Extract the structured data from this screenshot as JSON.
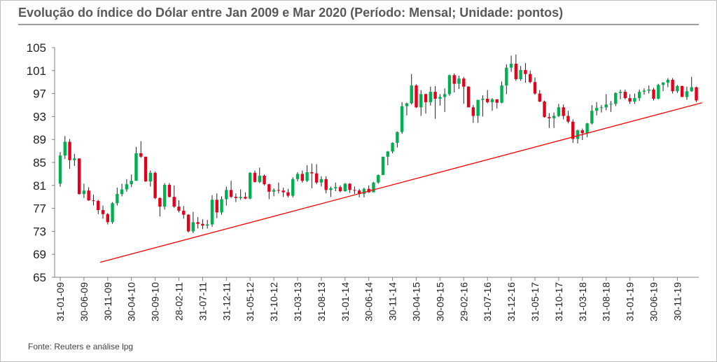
{
  "chart_data": {
    "type": "candlestick",
    "title": "Evolução do índice do Dólar entre Jan 2009 e Mar 2020 (Período: Mensal; Unidade: pontos)",
    "source": "Fonte: Reuters e análise lpg",
    "up_color": "#00b050",
    "down_color": "#e3001b",
    "categories": [
      "31-01-09",
      null,
      null,
      null,
      null,
      "30-06-09",
      null,
      null,
      null,
      null,
      "30-11-09",
      null,
      null,
      null,
      null,
      "30-04-10",
      null,
      null,
      null,
      null,
      "30-09-10",
      null,
      null,
      null,
      null,
      "28-02-11",
      null,
      null,
      null,
      null,
      "31-07-11",
      null,
      null,
      null,
      null,
      "31-12-11",
      null,
      null,
      null,
      null,
      "31-05-12",
      null,
      null,
      null,
      null,
      "31-10-12",
      null,
      null,
      null,
      null,
      "31-03-13",
      null,
      null,
      null,
      null,
      "31-08-13",
      null,
      null,
      null,
      null,
      "31-01-14",
      null,
      null,
      null,
      null,
      "30-06-14",
      null,
      null,
      null,
      null,
      "30-11-14",
      null,
      null,
      null,
      null,
      "30-04-15",
      null,
      null,
      null,
      null,
      "30-09-15",
      null,
      null,
      null,
      null,
      "29-02-16",
      null,
      null,
      null,
      null,
      "31-07-16",
      null,
      null,
      null,
      null,
      "31-12-16",
      null,
      null,
      null,
      null,
      "31-05-17",
      null,
      null,
      null,
      null,
      "31-10-17",
      null,
      null,
      null,
      null,
      "31-03-18",
      null,
      null,
      null,
      null,
      "31-08-18",
      null,
      null,
      null,
      null,
      "31-01-19",
      null,
      null,
      null,
      null,
      "30-06-19",
      null,
      null,
      null,
      null,
      "30-11-19",
      null,
      null,
      null,
      null
    ],
    "open": [
      81.3,
      86.2,
      88.6,
      85.4,
      85.7,
      79.5,
      80.1,
      78.4,
      78.3,
      76.7,
      76.0,
      74.6,
      77.9,
      79.5,
      80.3,
      81.2,
      81.8,
      86.6,
      86.0,
      81.7,
      83.2,
      78.8,
      77.3,
      81.1,
      79.0,
      77.3,
      76.6,
      75.9,
      73.0,
      74.6,
      74.3,
      74.0,
      74.2,
      78.5,
      76.3,
      78.6,
      80.2,
      79.0,
      78.8,
      79.0,
      78.7,
      83.2,
      81.6,
      82.7,
      81.2,
      79.9,
      80.2,
      80.1,
      79.8,
      79.2,
      82.1,
      83.0,
      81.8,
      83.3,
      83.1,
      81.5,
      82.1,
      80.2,
      80.5,
      80.7,
      80.0,
      81.3,
      80.2,
      80.1,
      79.5,
      80.4,
      79.8,
      81.5,
      82.8,
      86.0,
      86.9,
      88.4,
      90.3,
      94.8,
      95.3,
      98.4,
      94.6,
      96.9,
      95.5,
      97.3,
      96.1,
      96.4,
      96.9,
      100.2,
      98.7,
      99.6,
      98.2,
      94.6,
      93.1,
      95.9,
      96.1,
      95.5,
      96.0,
      95.4,
      98.4,
      101.5,
      102.2,
      99.5,
      101.1,
      100.4,
      99.0,
      97.0,
      95.6,
      92.9,
      92.7,
      93.1,
      94.6,
      93.1,
      92.1,
      89.1,
      90.6,
      90.1,
      91.8,
      94.0,
      94.5,
      94.6,
      95.1,
      95.2,
      97.1,
      97.3,
      96.2,
      95.6,
      96.2,
      97.3,
      97.5,
      97.7,
      96.1,
      98.5,
      98.9,
      99.4,
      97.4,
      98.3,
      96.4,
      97.4,
      98.1
    ],
    "high": [
      86.8,
      89.6,
      89.1,
      86.5,
      85.7,
      81.3,
      80.7,
      79.4,
      78.5,
      77.5,
      76.2,
      78.1,
      80.6,
      81.3,
      82.1,
      82.9,
      87.7,
      88.7,
      86.0,
      83.6,
      83.4,
      78.9,
      81.4,
      81.4,
      81.0,
      78.4,
      77.4,
      76.0,
      76.4,
      75.5,
      75.1,
      75.0,
      79.3,
      79.6,
      79.1,
      80.8,
      81.8,
      79.6,
      80.3,
      79.8,
      83.3,
      83.6,
      84.1,
      82.9,
      81.3,
      80.5,
      81.5,
      80.6,
      80.4,
      82.4,
      83.3,
      83.6,
      84.5,
      84.8,
      84.7,
      82.6,
      82.6,
      80.8,
      81.5,
      81.0,
      81.4,
      81.4,
      80.8,
      80.4,
      80.6,
      81.0,
      81.6,
      82.9,
      86.0,
      87.0,
      88.5,
      90.4,
      95.5,
      95.4,
      100.4,
      98.6,
      97.6,
      97.0,
      98.2,
      98.3,
      96.9,
      97.9,
      100.3,
      100.5,
      100.1,
      99.9,
      98.3,
      95.0,
      95.9,
      96.7,
      97.6,
      96.2,
      96.0,
      99.1,
      102.1,
      103.6,
      103.8,
      101.8,
      102.3,
      101.0,
      99.8,
      97.6,
      95.8,
      93.6,
      93.7,
      95.2,
      95.1,
      94.0,
      92.5,
      90.7,
      90.9,
      91.9,
      95.0,
      95.5,
      95.0,
      96.9,
      95.7,
      97.2,
      97.7,
      97.7,
      96.9,
      97.0,
      97.7,
      97.9,
      98.4,
      98.0,
      98.7,
      99.0,
      99.7,
      99.7,
      98.5,
      98.4,
      98.2,
      99.9,
      98.2
    ],
    "low": [
      80.8,
      85.6,
      83.9,
      84.4,
      79.4,
      78.8,
      78.3,
      77.5,
      76.0,
      75.2,
      74.2,
      74.3,
      77.5,
      79.1,
      79.9,
      80.7,
      81.8,
      85.8,
      81.6,
      80.8,
      78.6,
      75.6,
      76.8,
      78.9,
      77.1,
      76.3,
      75.2,
      72.8,
      72.7,
      73.5,
      73.4,
      73.5,
      73.8,
      75.3,
      75.9,
      77.5,
      78.8,
      78.1,
      78.5,
      78.6,
      78.6,
      81.5,
      81.4,
      81.0,
      78.6,
      79.1,
      79.6,
      79.0,
      78.9,
      78.9,
      81.7,
      81.5,
      81.6,
      80.5,
      81.2,
      80.8,
      79.6,
      79.0,
      80.0,
      79.8,
      79.9,
      79.7,
      79.5,
      78.9,
      78.9,
      79.7,
      79.8,
      81.3,
      82.8,
      84.5,
      86.6,
      87.6,
      90.0,
      93.2,
      95.1,
      94.5,
      93.1,
      93.5,
      94.9,
      92.6,
      94.9,
      93.8,
      96.6,
      97.2,
      97.8,
      95.2,
      94.6,
      91.9,
      91.9,
      93.0,
      95.3,
      94.0,
      94.4,
      95.3,
      96.9,
      100.8,
      99.2,
      99.2,
      98.9,
      98.8,
      96.8,
      95.5,
      92.8,
      91.0,
      91.0,
      92.9,
      92.5,
      91.8,
      88.4,
      88.3,
      88.9,
      89.4,
      91.6,
      93.2,
      93.7,
      94.1,
      93.8,
      94.8,
      96.0,
      96.0,
      95.2,
      95.2,
      95.7,
      96.8,
      97.0,
      95.8,
      96.0,
      97.4,
      98.1,
      97.0,
      97.1,
      96.4,
      95.9,
      97.3,
      95.5
    ],
    "close": [
      86.2,
      88.6,
      85.4,
      85.7,
      79.5,
      80.1,
      78.4,
      78.3,
      76.7,
      76.0,
      74.6,
      77.9,
      79.5,
      80.3,
      81.2,
      81.8,
      86.6,
      86.0,
      81.7,
      83.2,
      78.8,
      77.3,
      81.1,
      79.0,
      77.3,
      76.6,
      75.9,
      73.0,
      74.6,
      74.3,
      74.0,
      74.2,
      78.5,
      76.3,
      78.6,
      80.2,
      79.0,
      78.8,
      79.0,
      78.7,
      83.2,
      81.6,
      82.7,
      81.2,
      79.9,
      80.2,
      80.1,
      79.8,
      79.2,
      82.1,
      83.0,
      81.8,
      83.3,
      83.1,
      81.5,
      82.1,
      80.2,
      80.5,
      80.7,
      80.0,
      81.3,
      80.2,
      80.1,
      79.5,
      80.4,
      79.8,
      81.5,
      82.8,
      86.0,
      86.9,
      88.4,
      90.3,
      94.8,
      95.3,
      98.4,
      94.6,
      96.9,
      95.5,
      97.3,
      96.1,
      96.4,
      96.9,
      100.2,
      98.7,
      99.6,
      98.2,
      94.6,
      93.1,
      95.9,
      96.1,
      95.5,
      96.0,
      95.4,
      98.4,
      101.5,
      102.2,
      99.5,
      101.1,
      100.4,
      99.0,
      97.0,
      95.6,
      92.9,
      92.7,
      93.1,
      94.6,
      93.1,
      92.1,
      89.1,
      90.6,
      90.1,
      91.8,
      94.0,
      94.5,
      94.6,
      95.1,
      95.2,
      97.1,
      97.3,
      96.2,
      95.6,
      96.2,
      97.3,
      97.5,
      97.7,
      96.1,
      98.5,
      98.9,
      99.4,
      97.4,
      98.3,
      96.4,
      97.4,
      98.1,
      95.8
    ],
    "trendline": {
      "color": "#ff0000",
      "x": [
        8.4,
        135.2
      ],
      "y": [
        67.6,
        95.4
      ]
    },
    "ylim": [
      65,
      105
    ],
    "yticks": [
      65,
      69,
      73,
      77,
      81,
      85,
      89,
      93,
      97,
      101,
      105
    ]
  }
}
